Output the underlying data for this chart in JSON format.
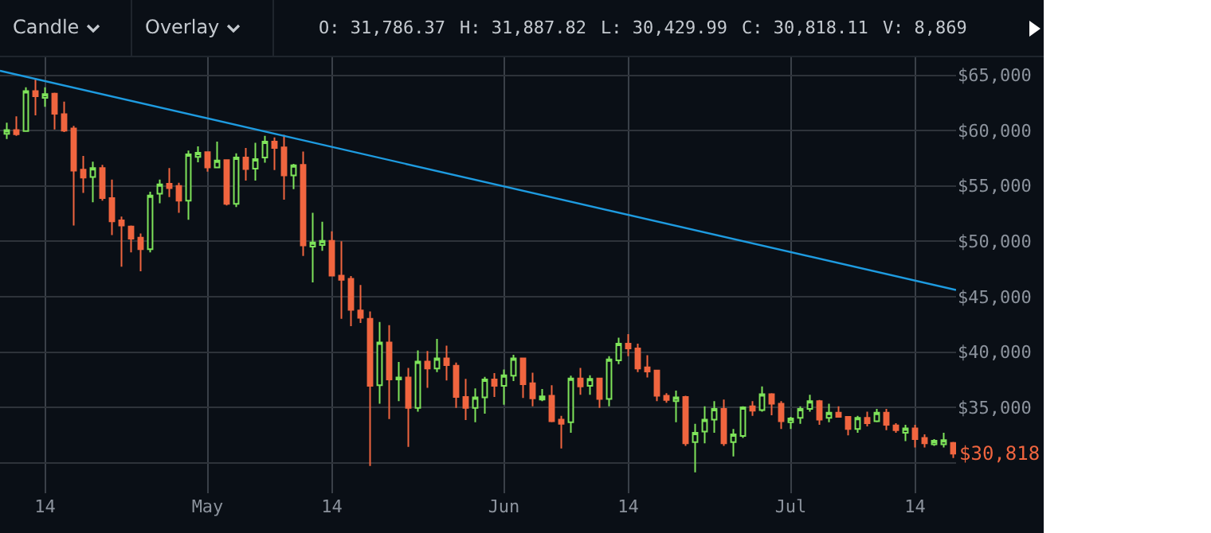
{
  "chart_data": {
    "type": "candlestick",
    "x": [
      "--04-10",
      "--04-11",
      "--04-12",
      "--04-13",
      "--04-14",
      "--04-15",
      "--04-16",
      "--04-17",
      "--04-18",
      "--04-19",
      "--04-20",
      "--04-21",
      "--04-22",
      "--04-23",
      "--04-24",
      "--04-25",
      "--04-26",
      "--04-27",
      "--04-28",
      "--04-29",
      "--04-30",
      "--05-01",
      "--05-02",
      "--05-03",
      "--05-04",
      "--05-05",
      "--05-06",
      "--05-07",
      "--05-08",
      "--05-09",
      "--05-10",
      "--05-11",
      "--05-12",
      "--05-13",
      "--05-14",
      "--05-15",
      "--05-16",
      "--05-17",
      "--05-18",
      "--05-19",
      "--05-20",
      "--05-21",
      "--05-22",
      "--05-23",
      "--05-24",
      "--05-25",
      "--05-26",
      "--05-27",
      "--05-28",
      "--05-29",
      "--05-30",
      "--05-31",
      "--06-01",
      "--06-02",
      "--06-03",
      "--06-04",
      "--06-05",
      "--06-06",
      "--06-07",
      "--06-08",
      "--06-09",
      "--06-10",
      "--06-11",
      "--06-12",
      "--06-13",
      "--06-14",
      "--06-15",
      "--06-16",
      "--06-17",
      "--06-18",
      "--06-19",
      "--06-20",
      "--06-21",
      "--06-22",
      "--06-23",
      "--06-24",
      "--06-25",
      "--06-26",
      "--06-27",
      "--06-28",
      "--06-29",
      "--06-30",
      "--07-01",
      "--07-02",
      "--07-03",
      "--07-04",
      "--07-05",
      "--07-06",
      "--07-07",
      "--07-08",
      "--07-09",
      "--07-10",
      "--07-11",
      "--07-12",
      "--07-13",
      "--07-14",
      "--07-15",
      "--07-16",
      "--07-17",
      "--07-18"
    ],
    "ohlc": [
      [
        59710,
        60710,
        59240,
        60050
      ],
      [
        60050,
        61290,
        59520,
        59670
      ],
      [
        59950,
        63900,
        59950,
        63570
      ],
      [
        63570,
        64710,
        61380,
        63100
      ],
      [
        62950,
        63900,
        62140,
        63290
      ],
      [
        63330,
        63430,
        60100,
        61520
      ],
      [
        61480,
        62620,
        59860,
        60000
      ],
      [
        60190,
        60430,
        51430,
        56380
      ],
      [
        56480,
        57710,
        54380,
        55760
      ],
      [
        55810,
        57190,
        53520,
        56620
      ],
      [
        56620,
        56900,
        53670,
        53900
      ],
      [
        53900,
        55570,
        50570,
        51810
      ],
      [
        51900,
        52240,
        47710,
        51430
      ],
      [
        51330,
        51430,
        49000,
        50240
      ],
      [
        50330,
        50710,
        47290,
        49290
      ],
      [
        49290,
        54480,
        49000,
        54140
      ],
      [
        54290,
        55570,
        53430,
        55140
      ],
      [
        55190,
        56620,
        54000,
        54810
      ],
      [
        55000,
        55290,
        52570,
        53670
      ],
      [
        53670,
        58190,
        51950,
        57860
      ],
      [
        57620,
        58570,
        57140,
        58000
      ],
      [
        58050,
        58050,
        56290,
        56670
      ],
      [
        56670,
        59000,
        56670,
        57290
      ],
      [
        57330,
        57330,
        53240,
        53380
      ],
      [
        53380,
        57950,
        53100,
        57570
      ],
      [
        57570,
        58430,
        55480,
        56520
      ],
      [
        56570,
        58900,
        55480,
        57430
      ],
      [
        57570,
        59520,
        57100,
        59000
      ],
      [
        59000,
        59380,
        56430,
        58430
      ],
      [
        58480,
        59620,
        53760,
        55950
      ],
      [
        55950,
        57000,
        54710,
        56860
      ],
      [
        56900,
        58100,
        48670,
        49620
      ],
      [
        49520,
        52570,
        46290,
        49900
      ],
      [
        49670,
        51760,
        49140,
        50050
      ],
      [
        50050,
        50900,
        46900,
        46900
      ],
      [
        46900,
        50000,
        43000,
        46520
      ],
      [
        46620,
        46860,
        42330,
        43810
      ],
      [
        43760,
        46050,
        42620,
        43100
      ],
      [
        43000,
        43670,
        29710,
        36950
      ],
      [
        37000,
        42710,
        35330,
        40860
      ],
      [
        40860,
        42430,
        33950,
        37520
      ],
      [
        37520,
        39100,
        35570,
        37710
      ],
      [
        37710,
        38570,
        31430,
        34950
      ],
      [
        34950,
        40140,
        34620,
        39140
      ],
      [
        39140,
        40100,
        36760,
        38520
      ],
      [
        38520,
        41190,
        38190,
        39430
      ],
      [
        39430,
        40570,
        37430,
        38810
      ],
      [
        38760,
        39050,
        34950,
        35950
      ],
      [
        35950,
        37570,
        33860,
        34950
      ],
      [
        34950,
        36710,
        33670,
        35900
      ],
      [
        35900,
        37760,
        34430,
        37520
      ],
      [
        37520,
        38100,
        35950,
        36950
      ],
      [
        36950,
        38430,
        35240,
        37900
      ],
      [
        37860,
        39760,
        37380,
        39430
      ],
      [
        39430,
        39430,
        35860,
        37100
      ],
      [
        37190,
        38140,
        35100,
        35810
      ],
      [
        35710,
        36670,
        35570,
        36000
      ],
      [
        36050,
        37000,
        33670,
        33760
      ],
      [
        33900,
        34240,
        31290,
        33520
      ],
      [
        33670,
        37860,
        32710,
        37620
      ],
      [
        37620,
        38570,
        36140,
        36900
      ],
      [
        36950,
        37900,
        36140,
        37570
      ],
      [
        37620,
        37620,
        34950,
        35760
      ],
      [
        35760,
        39620,
        35100,
        39330
      ],
      [
        39240,
        41290,
        38900,
        40760
      ],
      [
        40760,
        41620,
        39620,
        40330
      ],
      [
        40330,
        40760,
        38190,
        38520
      ],
      [
        38620,
        39710,
        37710,
        38240
      ],
      [
        38330,
        38330,
        35570,
        36050
      ],
      [
        36050,
        36290,
        35430,
        35670
      ],
      [
        35570,
        36520,
        33670,
        35900
      ],
      [
        35950,
        36050,
        31520,
        31760
      ],
      [
        31860,
        33520,
        29140,
        32710
      ],
      [
        32810,
        35100,
        31760,
        33900
      ],
      [
        33900,
        35570,
        32710,
        34860
      ],
      [
        34860,
        35710,
        31520,
        31760
      ],
      [
        31860,
        33050,
        30570,
        32570
      ],
      [
        32430,
        35100,
        32240,
        35000
      ],
      [
        35100,
        35570,
        34240,
        34710
      ],
      [
        34760,
        36900,
        34620,
        36190
      ],
      [
        36190,
        36290,
        34290,
        35330
      ],
      [
        35330,
        35570,
        33050,
        33760
      ],
      [
        33670,
        34140,
        33050,
        34000
      ],
      [
        34050,
        35100,
        33520,
        34860
      ],
      [
        34860,
        36140,
        34620,
        35570
      ],
      [
        35570,
        35670,
        33430,
        33900
      ],
      [
        34050,
        35330,
        33670,
        34520
      ],
      [
        34520,
        35100,
        34140,
        34140
      ],
      [
        34140,
        34140,
        32480,
        33050
      ],
      [
        33050,
        34240,
        32710,
        34050
      ],
      [
        34050,
        34620,
        33290,
        33570
      ],
      [
        33760,
        34860,
        33670,
        34520
      ],
      [
        34520,
        34860,
        32950,
        33430
      ],
      [
        33380,
        33570,
        32710,
        32950
      ],
      [
        32710,
        33430,
        31950,
        33100
      ],
      [
        33100,
        33430,
        31380,
        32140
      ],
      [
        32240,
        32570,
        31380,
        31760
      ],
      [
        31670,
        32140,
        31520,
        32000
      ],
      [
        31670,
        32710,
        31380,
        32050
      ],
      [
        31786.37,
        31887.82,
        30429.99,
        30818.11
      ]
    ],
    "series": [
      {
        "type": "line",
        "color": "#1e9be0",
        "x": [
          "--04-09T07:00",
          "--07-18T07:00"
        ],
        "values": [
          65400,
          45600
        ]
      }
    ],
    "xlim": [
      "--04-09T07:00",
      "--07-18T07:00"
    ],
    "xticks": [
      {
        "value": "--04-14",
        "label": "14"
      },
      {
        "value": "--05-01",
        "label": "May"
      },
      {
        "value": "--05-14",
        "label": "14"
      },
      {
        "value": "--06-01",
        "label": "Jun"
      },
      {
        "value": "--06-14",
        "label": "14"
      },
      {
        "value": "--07-01",
        "label": "Jul"
      },
      {
        "value": "--07-14",
        "label": "14"
      }
    ],
    "ylim": [
      27250,
      66620
    ],
    "yticks": [
      {
        "value": 30000,
        "label": null
      },
      {
        "value": 35000,
        "label": "$35,000"
      },
      {
        "value": 40000,
        "label": "$40,000"
      },
      {
        "value": 45000,
        "label": "$45,000"
      },
      {
        "value": 50000,
        "label": "$50,000"
      },
      {
        "value": 55000,
        "label": "$55,000"
      },
      {
        "value": 60000,
        "label": "$60,000"
      },
      {
        "value": 65000,
        "label": "$65,000"
      }
    ],
    "grid": true,
    "annotations": [
      "Candle",
      "Overlay",
      "O: 31,786.37",
      "H: 31,887.82",
      "L: 30,429.99",
      "C: 30,818.11",
      "V: 8,869",
      "$30,818."
    ]
  }
}
